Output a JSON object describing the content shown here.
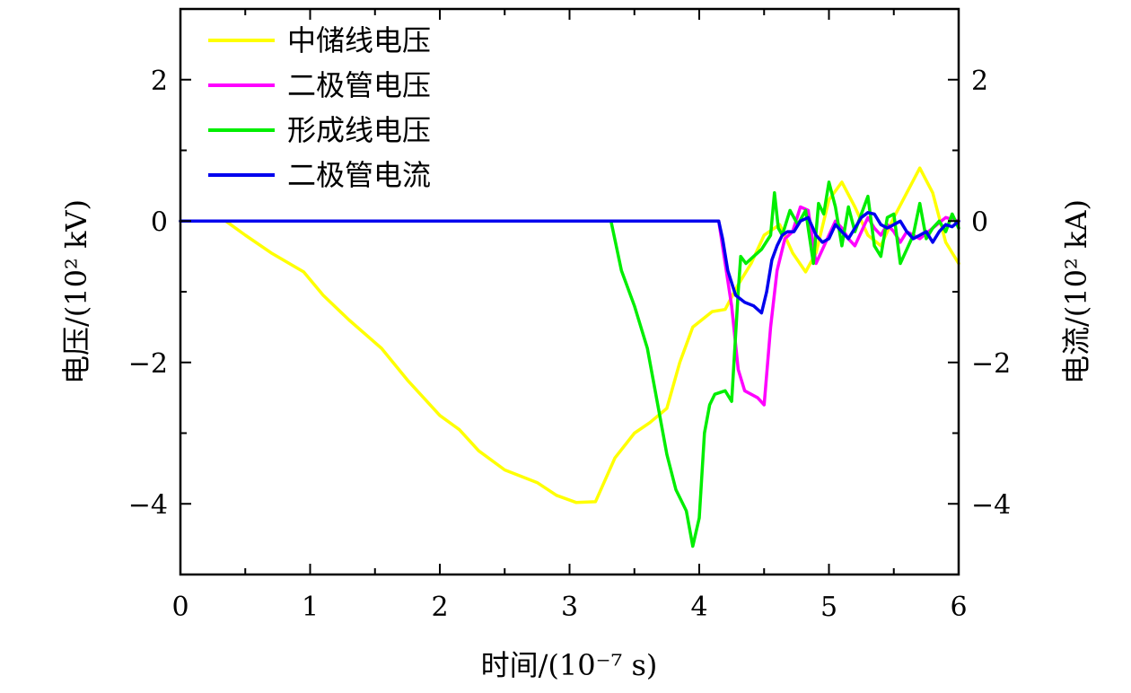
{
  "chart_data": {
    "type": "line",
    "xlabel": "时间/(10⁻⁷ s)",
    "ylabel": "电压/(10² kV)",
    "y2label": "电流/(10² kA)",
    "xlim": [
      0,
      6
    ],
    "ylim": [
      -5,
      3
    ],
    "y2lim": [
      -5,
      3
    ],
    "x_ticks": [
      "0",
      "1",
      "2",
      "3",
      "4",
      "5",
      "6"
    ],
    "y_ticks": [
      "2",
      "0",
      "−2",
      "−4"
    ],
    "y2_ticks": [
      "2",
      "0",
      "−2",
      "−4"
    ],
    "grid": false,
    "legend_position": "top-left",
    "series": [
      {
        "name": "中储线电压",
        "color": "#ffff00",
        "axis": "left",
        "x": [
          0,
          0.35,
          0.5,
          0.7,
          0.95,
          1.1,
          1.3,
          1.55,
          1.75,
          2.0,
          2.15,
          2.3,
          2.5,
          2.75,
          2.9,
          3.05,
          3.2,
          3.35,
          3.5,
          3.62,
          3.75,
          3.85,
          3.95,
          4.1,
          4.2,
          4.3,
          4.4,
          4.5,
          4.62,
          4.72,
          4.82,
          4.9,
          5.0,
          5.1,
          5.2,
          5.3,
          5.4,
          5.5,
          5.6,
          5.7,
          5.8,
          5.9,
          6.0
        ],
        "y": [
          0,
          0,
          -0.2,
          -0.45,
          -0.72,
          -1.05,
          -1.4,
          -1.8,
          -2.25,
          -2.75,
          -2.95,
          -3.25,
          -3.52,
          -3.7,
          -3.88,
          -3.98,
          -3.97,
          -3.35,
          -3.0,
          -2.85,
          -2.65,
          -2.0,
          -1.5,
          -1.28,
          -1.25,
          -0.9,
          -0.6,
          -0.2,
          -0.05,
          -0.45,
          -0.72,
          -0.45,
          0.3,
          0.55,
          0.2,
          -0.2,
          -0.35,
          0.05,
          0.4,
          0.75,
          0.4,
          -0.3,
          -0.6
        ]
      },
      {
        "name": "二极管电压",
        "color": "#ff00ff",
        "axis": "left",
        "x": [
          0,
          4.15,
          4.2,
          4.25,
          4.3,
          4.35,
          4.4,
          4.45,
          4.5,
          4.55,
          4.6,
          4.66,
          4.72,
          4.78,
          4.84,
          4.9,
          4.95,
          5.0,
          5.05,
          5.1,
          5.15,
          5.2,
          5.25,
          5.3,
          5.35,
          5.4,
          5.45,
          5.5,
          5.55,
          5.6,
          5.7,
          5.8,
          5.9,
          6.0
        ],
        "y": [
          0,
          0,
          -0.6,
          -1.2,
          -2.1,
          -2.4,
          -2.45,
          -2.5,
          -2.6,
          -1.5,
          -0.7,
          -0.25,
          -0.15,
          0.2,
          0.15,
          -0.6,
          -0.4,
          -0.2,
          0.0,
          -0.1,
          -0.25,
          -0.35,
          -0.15,
          0.05,
          -0.1,
          -0.2,
          -0.05,
          -0.15,
          -0.3,
          -0.15,
          -0.25,
          -0.1,
          0.05,
          0.0
        ]
      },
      {
        "name": "形成线电压",
        "color": "#00ee00",
        "axis": "left",
        "x": [
          0,
          3.32,
          3.4,
          3.5,
          3.6,
          3.68,
          3.75,
          3.82,
          3.9,
          3.95,
          4.0,
          4.04,
          4.08,
          4.12,
          4.2,
          4.25,
          4.3,
          4.32,
          4.36,
          4.42,
          4.48,
          4.55,
          4.58,
          4.61,
          4.64,
          4.7,
          4.76,
          4.82,
          4.88,
          4.92,
          4.96,
          5.0,
          5.05,
          5.1,
          5.15,
          5.2,
          5.25,
          5.3,
          5.35,
          5.4,
          5.45,
          5.5,
          5.55,
          5.6,
          5.65,
          5.7,
          5.75,
          5.8,
          5.85,
          5.9,
          5.95,
          6.0
        ],
        "y": [
          0,
          0,
          -0.7,
          -1.2,
          -1.8,
          -2.6,
          -3.3,
          -3.8,
          -4.1,
          -4.6,
          -4.2,
          -3.0,
          -2.6,
          -2.45,
          -2.4,
          -2.55,
          -1.0,
          -0.5,
          -0.6,
          -0.5,
          -0.4,
          -0.2,
          0.4,
          -0.1,
          -0.2,
          0.15,
          -0.05,
          0.15,
          -0.6,
          0.25,
          0.1,
          0.55,
          0.2,
          -0.35,
          0.2,
          -0.15,
          0.1,
          0.35,
          -0.35,
          -0.5,
          0.05,
          0.1,
          -0.6,
          -0.4,
          -0.2,
          0.25,
          -0.25,
          -0.1,
          0.0,
          -0.15,
          0.1,
          -0.1
        ]
      },
      {
        "name": "二极管电流",
        "color": "#0000ee",
        "axis": "right",
        "x": [
          0,
          4.15,
          4.18,
          4.22,
          4.28,
          4.35,
          4.42,
          4.48,
          4.52,
          4.56,
          4.6,
          4.64,
          4.68,
          4.73,
          4.78,
          4.84,
          4.9,
          4.95,
          5.0,
          5.05,
          5.1,
          5.15,
          5.2,
          5.25,
          5.3,
          5.35,
          5.4,
          5.45,
          5.5,
          5.55,
          5.6,
          5.65,
          5.7,
          5.75,
          5.8,
          5.85,
          5.9,
          5.95,
          6.0
        ],
        "y": [
          0,
          0,
          -0.25,
          -0.7,
          -1.05,
          -1.15,
          -1.2,
          -1.3,
          -1.0,
          -0.55,
          -0.35,
          -0.2,
          -0.15,
          -0.15,
          0.0,
          0.05,
          -0.2,
          -0.3,
          -0.25,
          -0.05,
          -0.15,
          -0.25,
          -0.1,
          0.05,
          0.12,
          0.1,
          -0.05,
          -0.1,
          -0.05,
          0.0,
          -0.15,
          -0.25,
          -0.2,
          -0.15,
          -0.3,
          -0.15,
          -0.05,
          -0.08,
          0.0
        ]
      }
    ]
  }
}
